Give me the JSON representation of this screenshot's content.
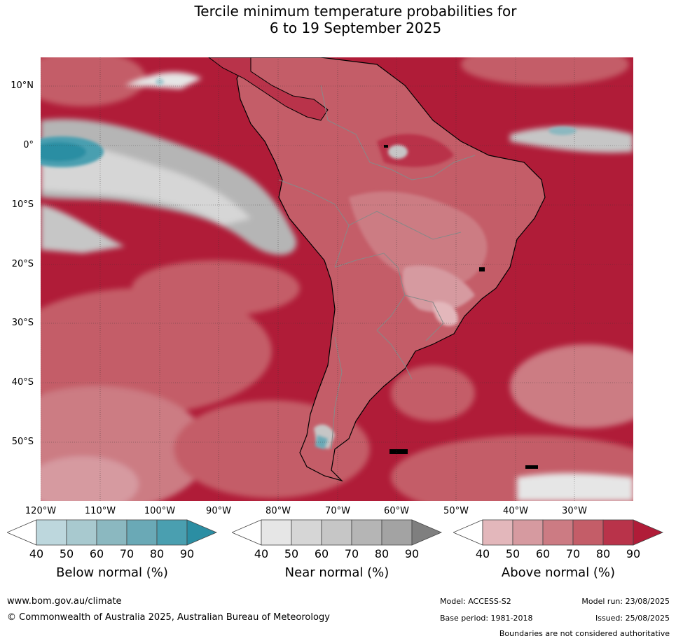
{
  "title": {
    "line1": "Tercile minimum temperature probabilities for",
    "line2": "6 to 19 September 2025"
  },
  "lat_labels": [
    "10°N",
    "0°",
    "10°S",
    "20°S",
    "30°S",
    "40°S",
    "50°S"
  ],
  "lon_labels": [
    "120°W",
    "110°W",
    "100°W",
    "90°W",
    "80°W",
    "70°W",
    "60°W",
    "50°W",
    "40°W",
    "30°W"
  ],
  "colorbars": [
    {
      "title": "Below normal (%)",
      "ticks": [
        "40",
        "50",
        "60",
        "70",
        "80",
        "90"
      ],
      "colors": [
        "#bdd7dd",
        "#a8c9cf",
        "#8bb8c0",
        "#6aa9b6",
        "#4a9fb0",
        "#2b8ea3"
      ]
    },
    {
      "title": "Near normal (%)",
      "ticks": [
        "40",
        "50",
        "60",
        "70",
        "80",
        "90"
      ],
      "colors": [
        "#e6e6e6",
        "#d6d6d6",
        "#c6c6c6",
        "#b5b5b5",
        "#a3a3a3",
        "#7f7f7f"
      ]
    },
    {
      "title": "Above normal (%)",
      "ticks": [
        "40",
        "50",
        "60",
        "70",
        "80",
        "90"
      ],
      "colors": [
        "#e3b7bb",
        "#d69aa0",
        "#cc7b83",
        "#c45d68",
        "#b9334a",
        "#b01c38"
      ]
    }
  ],
  "footer": {
    "website": "www.bom.gov.au/climate",
    "copyright": "© Commonwealth of Australia 2025, Australian Bureau of Meteorology",
    "model": "Model: ACCESS-S2",
    "base_period": "Base period: 1981-2018",
    "model_run": "Model run: 23/08/2025",
    "issued": "Issued: 25/08/2025",
    "disclaimer": "Boundaries are not considered authoritative"
  },
  "colors": {
    "above_dark": "#b01c38",
    "above_mid": "#c45d68",
    "above_light": "#d69aa0",
    "near": "#c6c6c6",
    "below": "#2b8ea3"
  }
}
